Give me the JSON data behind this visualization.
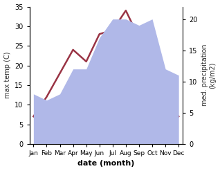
{
  "months": [
    "Jan",
    "Feb",
    "Mar",
    "Apr",
    "May",
    "Jun",
    "Jul",
    "Aug",
    "Sep",
    "Oct",
    "Nov",
    "Dec"
  ],
  "month_x": [
    0,
    1,
    2,
    3,
    4,
    5,
    6,
    7,
    8,
    9,
    10,
    11
  ],
  "temperature": [
    7,
    12,
    18,
    24,
    21,
    28,
    29,
    34,
    27,
    17,
    11,
    7
  ],
  "precipitation": [
    8,
    7,
    8,
    12,
    12,
    17,
    20,
    20,
    19,
    20,
    12,
    11
  ],
  "temp_color": "#993344",
  "precip_color": "#b0b8e8",
  "title": "",
  "xlabel": "date (month)",
  "ylabel_left": "max temp (C)",
  "ylabel_right": "med. precipitation\n(kg/m2)",
  "ylim_left": [
    0,
    35
  ],
  "ylim_right": [
    0,
    22
  ],
  "yticks_left": [
    0,
    5,
    10,
    15,
    20,
    25,
    30,
    35
  ],
  "yticks_right": [
    0,
    5,
    10,
    15,
    20
  ],
  "bg_color": "#ffffff",
  "line_width": 1.8
}
